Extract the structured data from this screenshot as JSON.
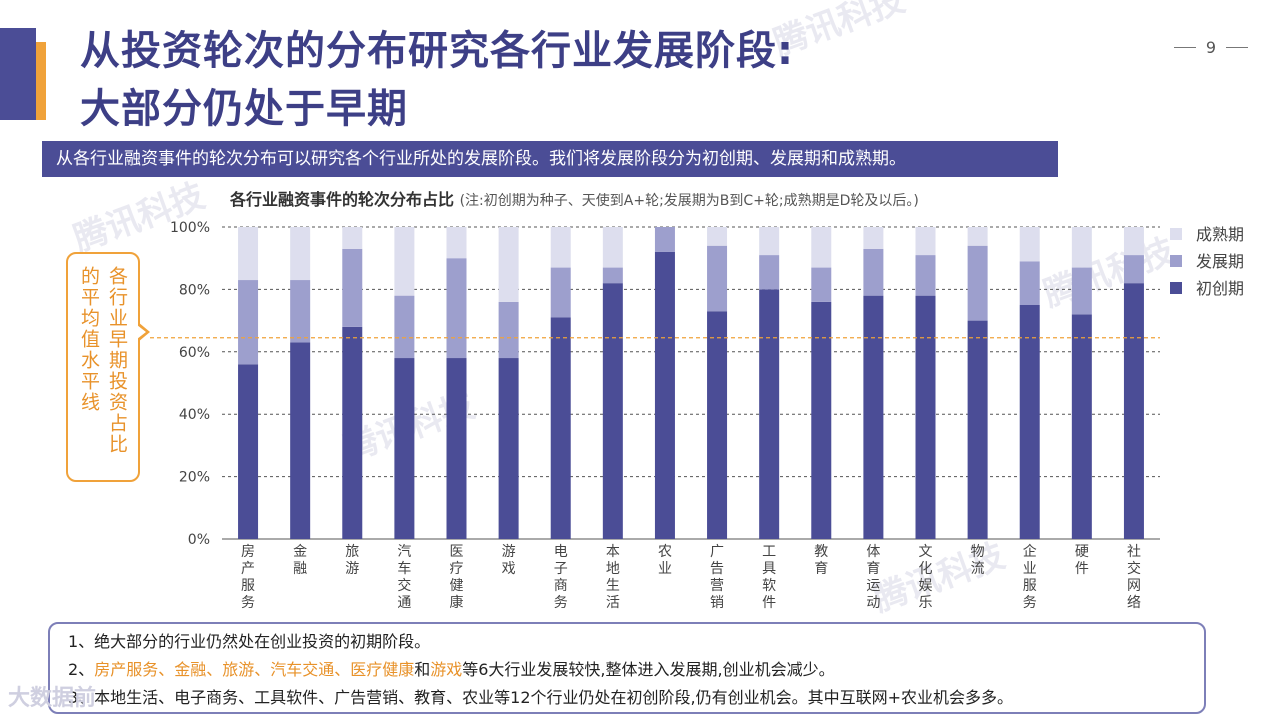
{
  "page": {
    "number": "9"
  },
  "title_line1": "从投资轮次的分布研究各行业发展阶段:",
  "title_line2": "大部分仍处于早期",
  "subtitle": "从各行业融资事件的轮次分布可以研究各个行业所处的发展阶段。我们将发展阶段分为初创期、发展期和成熟期。",
  "chart_title": "各行业融资事件的轮次分布占比",
  "chart_note": "(注:初创期为种子、天使到A+轮;发展期为B到C+轮;成熟期是D轮及以后。)",
  "callout": {
    "col1": "各行业早期投资占比",
    "col2": "的平均值水平线"
  },
  "watermark": "腾讯科技",
  "logo_text": "大数据前",
  "notes": {
    "n1": "1、绝大部分的行业仍然处在创业投资的初期阶段。",
    "n2_prefix": "2、",
    "n2_hl1": "房产服务、金融、旅游、汽车交通、医疗健康",
    "n2_and": "和",
    "n2_hl2": "游戏",
    "n2_rest": "等6大行业发展较快,整体进入发展期,创业机会减少。",
    "n3": "3、本地生活、电子商务、工具软件、广告营销、教育、农业等12个行业仍处在初创阶段,仍有创业机会。其中互联网+农业机会多多。"
  },
  "colors": {
    "early": "#4b4d96",
    "growth": "#9d9fcd",
    "mature": "#dddeee",
    "avgline": "#f0a23a"
  },
  "chart_data": {
    "type": "bar",
    "stacked": true,
    "categories": [
      "房产服务",
      "金融",
      "旅游",
      "汽车交通",
      "医疗健康",
      "游戏",
      "电子商务",
      "本地生活",
      "农业",
      "广告营销",
      "工具软件",
      "教育",
      "体育运动",
      "文化娱乐",
      "物流",
      "企业服务",
      "硬件",
      "社交网络"
    ],
    "series": [
      {
        "name": "初创期",
        "values": [
          56,
          63,
          68,
          58,
          58,
          58,
          71,
          82,
          92,
          73,
          80,
          76,
          78,
          78,
          70,
          75,
          72,
          82
        ]
      },
      {
        "name": "发展期",
        "values": [
          27,
          20,
          25,
          20,
          32,
          18,
          16,
          5,
          8,
          21,
          11,
          11,
          15,
          13,
          24,
          14,
          15,
          9
        ]
      },
      {
        "name": "成熟期",
        "values": [
          17,
          17,
          7,
          22,
          10,
          24,
          13,
          13,
          0,
          6,
          9,
          13,
          7,
          9,
          6,
          11,
          13,
          9
        ]
      }
    ],
    "yticks": [
      "0%",
      "20%",
      "40%",
      "60%",
      "80%",
      "100%"
    ],
    "ylim": [
      0,
      100
    ],
    "average_line": 64.5,
    "legend": [
      "成熟期",
      "发展期",
      "初创期"
    ],
    "legend_position": "right",
    "grid": true
  }
}
